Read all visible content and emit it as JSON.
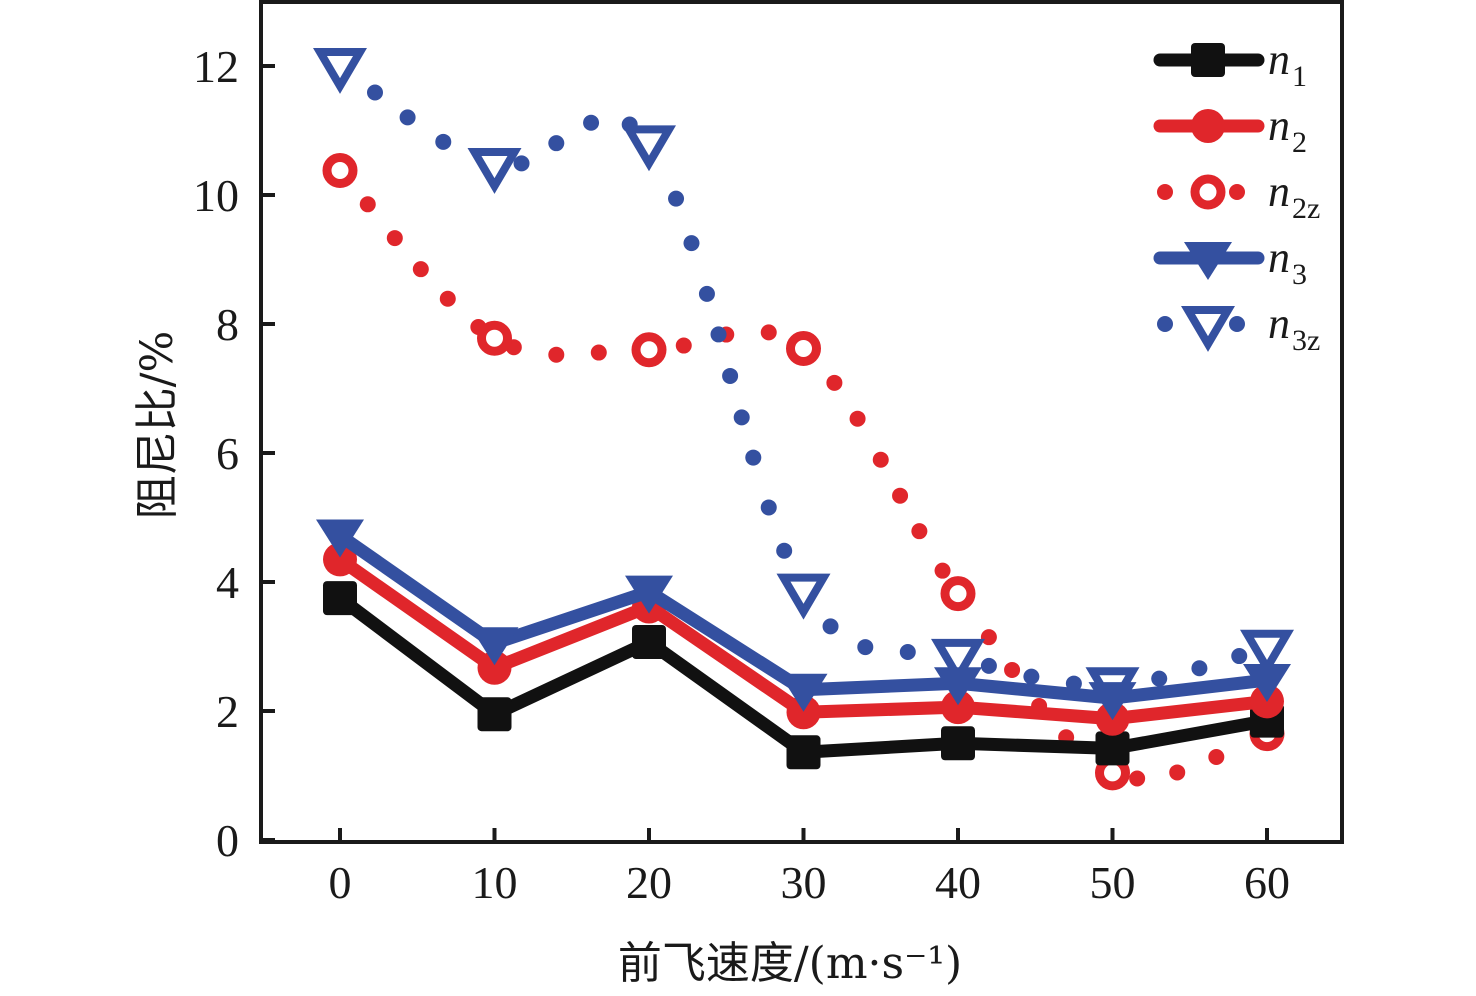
{
  "chart_data": {
    "type": "line",
    "title": "",
    "xlabel": "前飞速度/(m·s⁻¹)",
    "ylabel": "阻尼比/%",
    "x": [
      0,
      10,
      20,
      30,
      40,
      50,
      60
    ],
    "xlim": [
      -5,
      65
    ],
    "ylim": [
      0,
      13
    ],
    "xticks": [
      "0",
      "10",
      "20",
      "30",
      "40",
      "50",
      "60"
    ],
    "yticks": [
      "0",
      "2",
      "4",
      "6",
      "8",
      "10",
      "12"
    ],
    "xtick_values": [
      0,
      10,
      20,
      30,
      40,
      50,
      60
    ],
    "ytick_values": [
      0,
      2,
      4,
      6,
      8,
      10,
      12
    ],
    "grid": false,
    "legend_position": "top-right",
    "series": [
      {
        "name": "n1",
        "label_main": "n",
        "label_sub": "1",
        "color": "#111111",
        "marker": "square-filled",
        "line": "solid",
        "values": [
          3.75,
          1.95,
          3.07,
          1.36,
          1.5,
          1.42,
          1.85
        ]
      },
      {
        "name": "n2",
        "label_main": "n",
        "label_sub": "2",
        "color": "#e0262b",
        "marker": "circle-filled",
        "line": "solid",
        "values": [
          4.35,
          2.67,
          3.62,
          1.98,
          2.06,
          1.88,
          2.15
        ]
      },
      {
        "name": "n2z",
        "label_main": "n",
        "label_sub": "2z",
        "color": "#e0262b",
        "marker": "circle-open",
        "line": "dotted",
        "values": [
          10.38,
          7.78,
          7.6,
          7.62,
          3.82,
          1.04,
          1.65
        ]
      },
      {
        "name": "n3",
        "label_main": "n",
        "label_sub": "3",
        "color": "#3450a0",
        "marker": "triangle-down-filled",
        "line": "solid",
        "values": [
          4.72,
          3.05,
          3.85,
          2.33,
          2.43,
          2.2,
          2.48
        ]
      },
      {
        "name": "n3z",
        "label_main": "n",
        "label_sub": "3z",
        "color": "#3450a0",
        "marker": "triangle-down-open",
        "line": "dotted",
        "values": [
          12.0,
          10.45,
          10.8,
          3.85,
          2.84,
          2.4,
          2.98
        ]
      }
    ]
  }
}
